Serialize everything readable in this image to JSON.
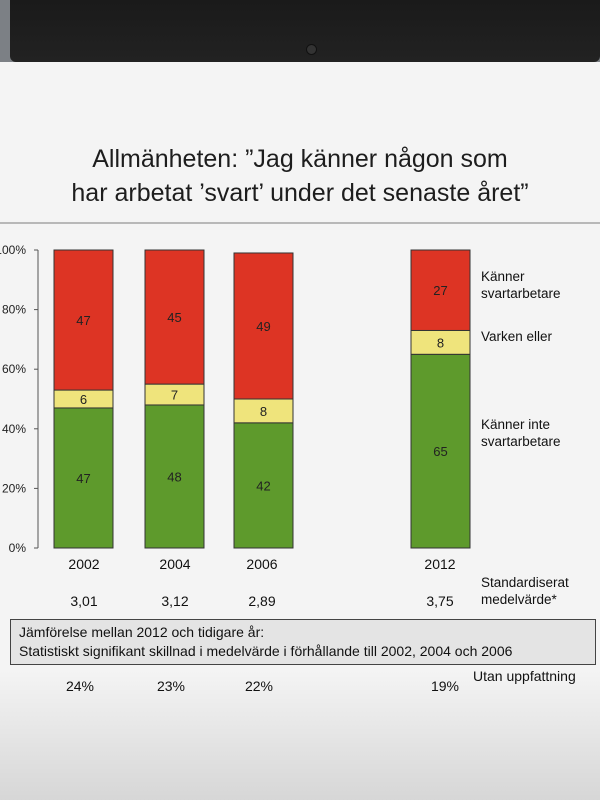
{
  "title_lines": [
    "Allmänheten: ”Jag känner någon som",
    "har arbetat ’svart’ under det senaste året”"
  ],
  "chart_data": {
    "type": "bar",
    "stacked": true,
    "categories": [
      "2002",
      "2004",
      "2006",
      "2012"
    ],
    "series": [
      {
        "name": "Känner inte svartarbetare",
        "values": [
          47,
          48,
          42,
          65
        ],
        "color": "#5e9a2c"
      },
      {
        "name": "Varken eller",
        "values": [
          6,
          7,
          8,
          8
        ],
        "color": "#efe47c"
      },
      {
        "name": "Känner svartarbetare",
        "values": [
          47,
          45,
          49,
          27
        ],
        "color": "#dd3424"
      }
    ],
    "ylim": [
      0,
      100
    ],
    "yticks": [
      "0%",
      "20%",
      "40%",
      "60%",
      "80%",
      "100%"
    ],
    "ylabel": "",
    "xlabel": ""
  },
  "legend": {
    "kanner": [
      "Känner",
      "svartarbetare"
    ],
    "varken": "Varken eller",
    "kanner_inte": [
      "Känner inte",
      "svartarbetare"
    ]
  },
  "means": {
    "label": [
      "Standardiserat",
      "medelvärde*"
    ],
    "values": [
      "3,01",
      "3,12",
      "2,89",
      "3,75"
    ]
  },
  "comparison": {
    "line1": "Jämförelse mellan 2012 och tidigare år:",
    "line2": "Statistiskt signifikant skillnad i medelvärde i förhållande till 2002, 2004  och 2006"
  },
  "no_opinion": {
    "label": "Utan uppfattning",
    "values": [
      "24%",
      "23%",
      "22%",
      "19%"
    ]
  }
}
